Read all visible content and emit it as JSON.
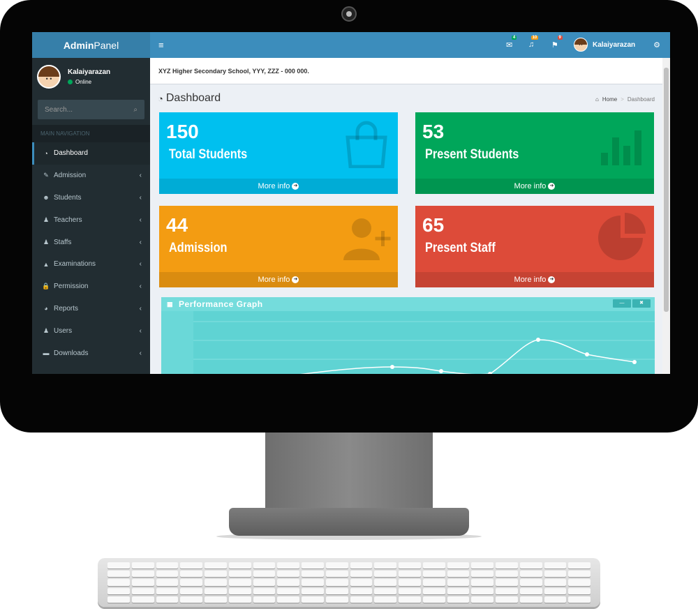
{
  "app": {
    "logo_bold": "Admin",
    "logo_rest": "Panel"
  },
  "user": {
    "name": "Kalaiyarazan",
    "status": "Online"
  },
  "search": {
    "placeholder": "Search..."
  },
  "nav": {
    "header": "MAIN NAVIGATION",
    "items": [
      {
        "label": "Dashboard",
        "icon": "dashboard-icon",
        "glyph": "◔",
        "active": true
      },
      {
        "label": "Admission",
        "icon": "edit-icon",
        "glyph": "✎"
      },
      {
        "label": "Students",
        "icon": "users-icon",
        "glyph": "☻"
      },
      {
        "label": "Teachers",
        "icon": "user-icon",
        "glyph": "♟"
      },
      {
        "label": "Staffs",
        "icon": "user-plus-icon",
        "glyph": "♟"
      },
      {
        "label": "Examinations",
        "icon": "graduation-cap-icon",
        "glyph": "▲"
      },
      {
        "label": "Permission",
        "icon": "lock-icon",
        "glyph": "🔒"
      },
      {
        "label": "Reports",
        "icon": "pie-chart-icon",
        "glyph": "◕"
      },
      {
        "label": "Users",
        "icon": "user-icon",
        "glyph": "♟"
      },
      {
        "label": "Downloads",
        "icon": "folder-icon",
        "glyph": "▬"
      }
    ]
  },
  "topbar": {
    "menu_icon": "≡",
    "mail_badge": "4",
    "bell_badge": "10",
    "flag_badge": "9",
    "user_name": "Kalaiyarazan",
    "colors": {
      "mail": "#00a65a",
      "bell": "#f39c12",
      "flag": "#dd4b39"
    }
  },
  "school": {
    "info": "XYZ Higher Secondary School, YYY, ZZZ - 000 000."
  },
  "page": {
    "title": "Dashboard",
    "breadcrumb": {
      "home": "Home",
      "separator": ">",
      "current": "Dashboard"
    }
  },
  "stats": [
    {
      "value": "150",
      "label": "Total Students",
      "footer": "More info",
      "color": "#00c0ef",
      "icon": "shopping-bag-icon"
    },
    {
      "value": "53",
      "label": "Present Students",
      "footer": "More info",
      "color": "#00a65a",
      "icon": "bar-chart-icon"
    },
    {
      "value": "44",
      "label": "Admission",
      "footer": "More info",
      "color": "#f39c12",
      "icon": "user-add-icon"
    },
    {
      "value": "65",
      "label": "Present Staff",
      "footer": "More info",
      "color": "#dd4b39",
      "icon": "pie-chart-icon"
    }
  ],
  "graph": {
    "title": "Performance Graph",
    "minimize": "—",
    "close": "✖"
  }
}
